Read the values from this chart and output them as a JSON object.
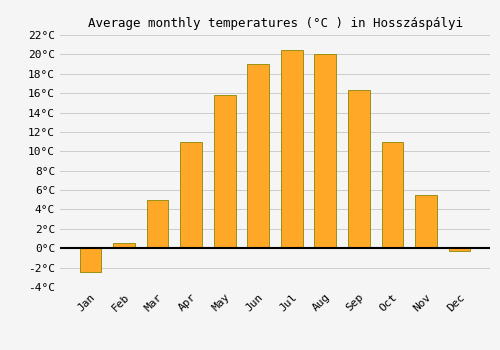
{
  "title": "Average monthly temperatures (°C ) in Hosszáspályi",
  "months": [
    "Jan",
    "Feb",
    "Mar",
    "Apr",
    "May",
    "Jun",
    "Jul",
    "Aug",
    "Sep",
    "Oct",
    "Nov",
    "Dec"
  ],
  "values": [
    -2.5,
    0.5,
    5.0,
    11.0,
    15.8,
    19.0,
    20.5,
    20.0,
    16.3,
    11.0,
    5.5,
    -0.3
  ],
  "bar_color": "#FFA726",
  "bar_edge_color": "#888800",
  "ylim": [
    -4,
    22
  ],
  "yticks": [
    -4,
    -2,
    0,
    2,
    4,
    6,
    8,
    10,
    12,
    14,
    16,
    18,
    20,
    22
  ],
  "background_color": "#F5F5F5",
  "grid_color": "#CCCCCC",
  "title_fontsize": 9,
  "tick_fontsize": 8,
  "font_family": "monospace"
}
